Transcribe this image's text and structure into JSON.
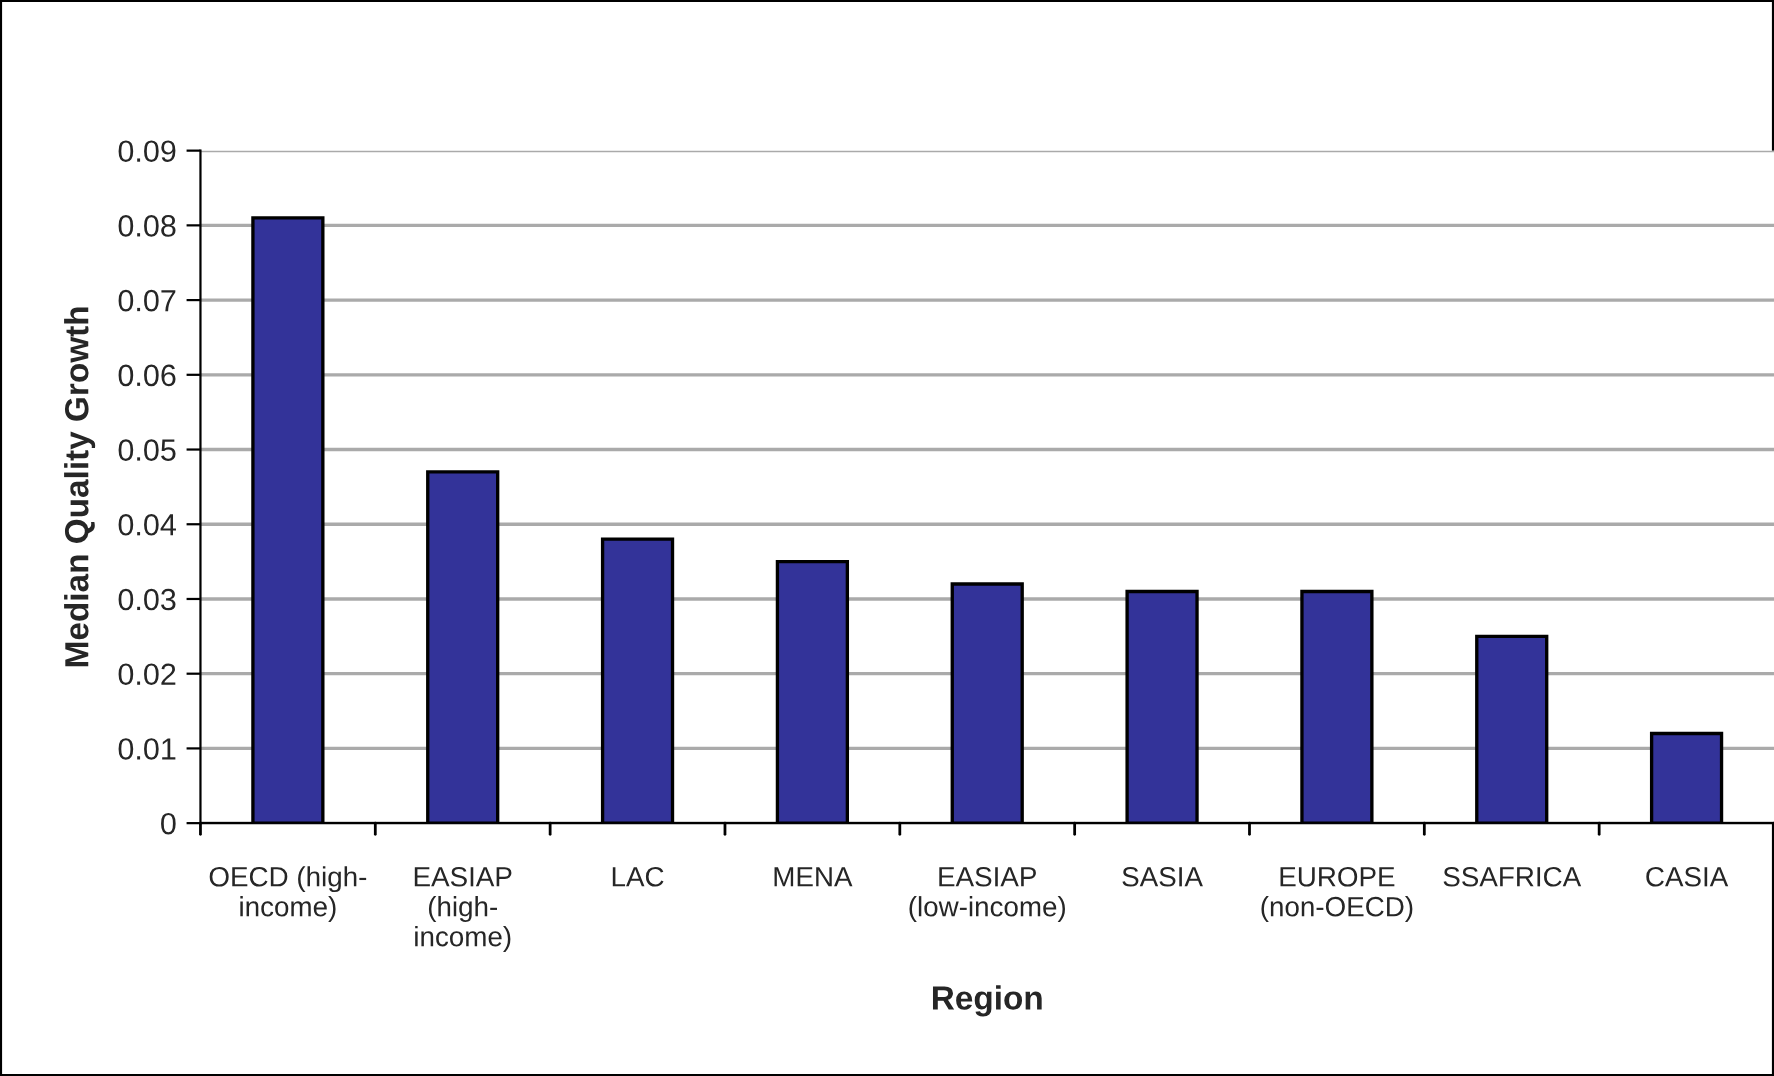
{
  "chart_data": {
    "type": "bar",
    "xlabel": "Region",
    "ylabel": "Median Quality Growth",
    "categories": [
      "OECD (high-\nincome)",
      "EASIAP\n(high-\nincome)",
      "LAC",
      "MENA",
      "EASIAP\n(low-income)",
      "SASIA",
      "EUROPE\n(non-OECD)",
      "SSAFRICA",
      "CASIA"
    ],
    "values": [
      0.081,
      0.047,
      0.038,
      0.035,
      0.032,
      0.031,
      0.031,
      0.025,
      0.012
    ],
    "color": "#333399",
    "ylim": [
      0,
      0.09
    ],
    "yticks": [
      {
        "value": 0,
        "label": "0"
      },
      0.01,
      0.02,
      0.03,
      0.04,
      0.05,
      0.06,
      0.07,
      0.08,
      0.09
    ],
    "grid": "y",
    "legend": false
  }
}
